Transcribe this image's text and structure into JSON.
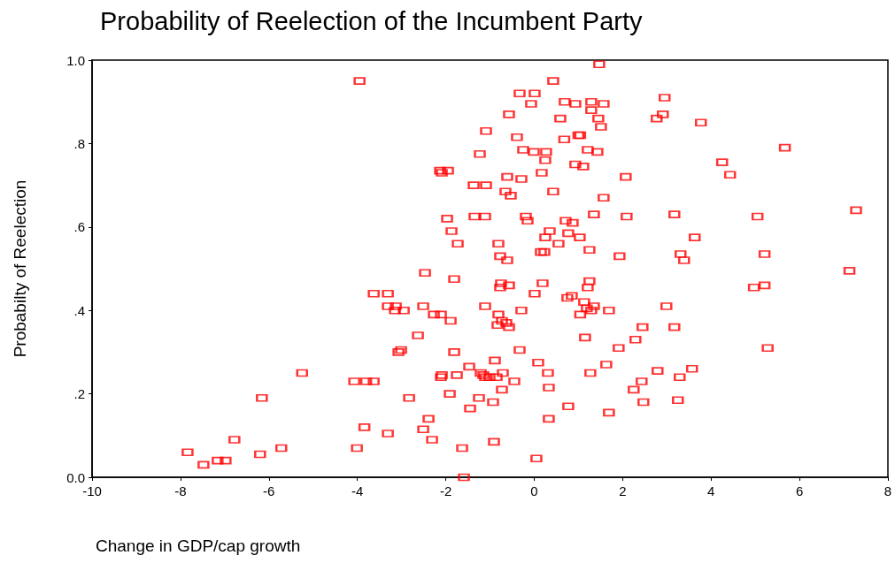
{
  "chart_data": {
    "type": "scatter",
    "title": "Probability of Reelection of the Incumbent Party",
    "xlabel": "Change in GDP/cap growth",
    "ylabel": "Probabilty of Reelection",
    "xlim": [
      -10,
      8
    ],
    "xticks": [
      -10,
      -8,
      -6,
      -4,
      -2,
      0,
      2,
      4,
      6,
      8
    ],
    "ylim": [
      0,
      1
    ],
    "yticks": [
      {
        "value": 0,
        "label": "0.0"
      },
      {
        "value": 0.2,
        "label": ".2"
      },
      {
        "value": 0.4,
        "label": ".4"
      },
      {
        "value": 0.6,
        "label": ".6"
      },
      {
        "value": 0.8,
        "label": ".8"
      },
      {
        "value": 1,
        "label": "1.0"
      }
    ],
    "grid": false,
    "marker": "square",
    "series": [
      {
        "color": "#ff0000",
        "x": [
          -3.95,
          -7.84,
          -7.48,
          -7.16,
          -6.98,
          -6.78,
          -6.2,
          -6.16,
          -5.72,
          -5.25,
          -4.01,
          -4.07,
          -3.84,
          -3.8,
          -3.63,
          -3.63,
          -3.31,
          -3.31,
          -3.15,
          -3.13,
          -3.07,
          -3.01,
          -2.95,
          -3.31,
          -2.83,
          -2.63,
          -2.51,
          -2.51,
          -2.47,
          -2.39,
          -2.31,
          -2.27,
          -2.11,
          -2.11,
          1.47,
          0.43,
          -0.33,
          0.01,
          -0.07,
          0.69,
          0.93,
          1.29,
          1.57,
          1.29,
          -0.57,
          0.59,
          1.45,
          1.51,
          -1.09,
          1.0,
          1.04,
          -0.39,
          0.68,
          -0.01,
          -1.23,
          0.27,
          -0.25,
          1.21,
          1.43,
          0.25,
          0.93,
          1.11,
          0.17,
          -2.09,
          -2.13,
          -1.95,
          -0.61,
          -0.29,
          -1.37,
          -1.09,
          0.43,
          -0.65,
          -0.53,
          1.57,
          2.07,
          -1.35,
          -1.11,
          -1.97,
          -0.19,
          -0.15,
          0.71,
          0.87,
          1.35,
          2.09,
          -1.87,
          0.35,
          0.77,
          -1.73,
          -0.81,
          0.55,
          0.25,
          1.03,
          0.15,
          0.23,
          -0.61,
          -0.77,
          1.25,
          1.93,
          -1.81,
          -0.75,
          -0.57,
          -0.77,
          0.19,
          1.25,
          1.21,
          0.01,
          0.75,
          0.85,
          -1.11,
          -0.29,
          -0.81,
          -0.73,
          -0.63,
          -0.57,
          -0.83,
          -1.89,
          1.04,
          1.13,
          1.19,
          1.29,
          1.35,
          1.69,
          1.15,
          -1.81,
          -0.33,
          -1.47,
          -0.89,
          0.09,
          1.63,
          -2.09,
          -1.75,
          -1.21,
          -1.15,
          -1.11,
          -1.01,
          -0.85,
          -0.71,
          -0.45,
          0.31,
          1.27,
          -0.73,
          0.33,
          -1.91,
          -1.25,
          -0.93,
          -1.45,
          0.77,
          0.33,
          -0.91,
          -1.63,
          0.05,
          -1.59,
          1.69,
          1.91,
          2.95,
          2.91,
          2.77,
          3.77,
          5.67,
          4.25,
          4.43,
          3.17,
          5.05,
          7.28,
          3.63,
          3.31,
          3.39,
          5.21,
          7.13,
          4.97,
          5.21,
          2.99,
          3.17,
          2.45,
          2.29,
          5.28,
          3.57,
          2.79,
          3.29,
          2.43,
          2.25,
          2.47,
          3.25
        ],
        "values": [
          0.95,
          0.06,
          0.03,
          0.04,
          0.04,
          0.09,
          0.055,
          0.19,
          0.07,
          0.25,
          0.07,
          0.23,
          0.12,
          0.23,
          0.23,
          0.44,
          0.44,
          0.41,
          0.4,
          0.41,
          0.3,
          0.305,
          0.4,
          0.105,
          0.19,
          0.34,
          0.115,
          0.41,
          0.49,
          0.14,
          0.09,
          0.39,
          0.39,
          0.24,
          0.99,
          0.95,
          0.92,
          0.92,
          0.895,
          0.9,
          0.895,
          0.9,
          0.895,
          0.88,
          0.87,
          0.86,
          0.86,
          0.84,
          0.83,
          0.82,
          0.82,
          0.815,
          0.81,
          0.78,
          0.775,
          0.78,
          0.785,
          0.785,
          0.78,
          0.76,
          0.75,
          0.745,
          0.73,
          0.73,
          0.735,
          0.735,
          0.72,
          0.715,
          0.7,
          0.7,
          0.685,
          0.685,
          0.675,
          0.67,
          0.72,
          0.625,
          0.625,
          0.62,
          0.625,
          0.615,
          0.615,
          0.61,
          0.63,
          0.625,
          0.59,
          0.59,
          0.585,
          0.56,
          0.56,
          0.56,
          0.575,
          0.575,
          0.54,
          0.54,
          0.52,
          0.53,
          0.545,
          0.53,
          0.475,
          0.465,
          0.46,
          0.455,
          0.465,
          0.47,
          0.455,
          0.44,
          0.43,
          0.435,
          0.41,
          0.4,
          0.39,
          0.375,
          0.37,
          0.36,
          0.365,
          0.375,
          0.39,
          0.42,
          0.405,
          0.4,
          0.41,
          0.4,
          0.335,
          0.3,
          0.305,
          0.265,
          0.28,
          0.275,
          0.27,
          0.245,
          0.245,
          0.25,
          0.245,
          0.24,
          0.24,
          0.24,
          0.25,
          0.23,
          0.25,
          0.25,
          0.21,
          0.215,
          0.2,
          0.19,
          0.18,
          0.165,
          0.17,
          0.14,
          0.085,
          0.07,
          0.045,
          0.0,
          0.155,
          0.31,
          0.91,
          0.87,
          0.86,
          0.85,
          0.79,
          0.755,
          0.725,
          0.63,
          0.625,
          0.64,
          0.575,
          0.535,
          0.52,
          0.535,
          0.495,
          0.455,
          0.46,
          0.41,
          0.36,
          0.36,
          0.33,
          0.31,
          0.26,
          0.255,
          0.24,
          0.23,
          0.21,
          0.18,
          0.185
        ]
      }
    ]
  }
}
